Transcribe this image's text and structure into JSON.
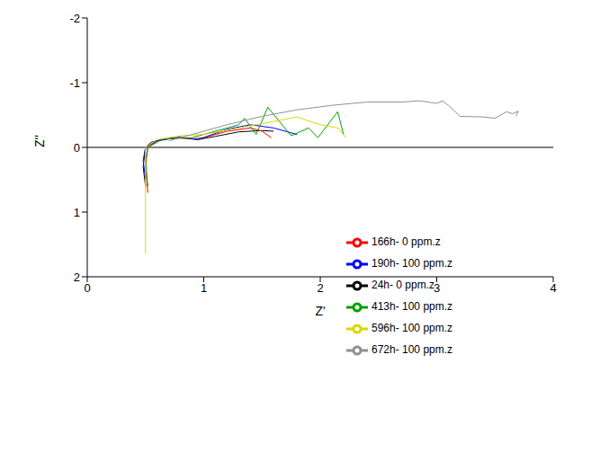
{
  "chart_data": {
    "type": "line",
    "x_label": "Z'",
    "y_label": "Z''",
    "xlim": [
      0,
      4
    ],
    "xticks": [
      0,
      1,
      2,
      3,
      4
    ],
    "ylim": [
      2,
      -2
    ],
    "yticks": [
      -2,
      -1,
      0,
      1,
      2
    ],
    "hlines": [
      0
    ],
    "legend": "right",
    "grid": false,
    "series": [
      {
        "name": "24h- 0 ppm.z",
        "color": "#000000",
        "x": [
          0.5,
          0.48,
          0.5,
          0.55,
          0.65,
          0.8,
          0.95,
          1.1,
          1.3,
          1.5,
          1.6
        ],
        "values": [
          0.6,
          0.3,
          0,
          -0.08,
          -0.13,
          -0.15,
          -0.12,
          -0.17,
          -0.24,
          -0.26,
          -0.25
        ]
      },
      {
        "name": "166h- 0 ppm.z",
        "color": "#ff0000",
        "x": [
          0.52,
          0.5,
          0.52,
          0.6,
          0.75,
          0.9,
          1.0,
          1.2,
          1.4,
          1.5,
          1.58
        ],
        "values": [
          0.7,
          0.3,
          0,
          -0.1,
          -0.15,
          -0.13,
          -0.15,
          -0.25,
          -0.3,
          -0.25,
          -0.15
        ]
      },
      {
        "name": "190h- 100 ppm.z",
        "color": "#0000ff",
        "x": [
          0.5,
          0.48,
          0.5,
          0.6,
          0.8,
          0.95,
          1.2,
          1.4,
          1.6,
          1.8
        ],
        "values": [
          0.5,
          0.2,
          0,
          -0.1,
          -0.16,
          -0.12,
          -0.28,
          -0.35,
          -0.3,
          -0.2
        ]
      },
      {
        "name": "413h- 100 ppm.z",
        "color": "#00a000",
        "x": [
          0.52,
          0.5,
          0.52,
          0.65,
          0.9,
          1.0,
          1.3,
          1.35,
          1.45,
          1.55,
          1.75,
          1.9,
          1.98,
          2.15,
          2.2
        ],
        "values": [
          0.6,
          0.2,
          0,
          -0.13,
          -0.15,
          -0.2,
          -0.35,
          -0.45,
          -0.2,
          -0.62,
          -0.18,
          -0.3,
          -0.15,
          -0.55,
          -0.2
        ]
      },
      {
        "name": "596h- 100 ppm.z",
        "color": "#d8d800",
        "x": [
          0.5,
          0.5,
          0.5,
          0.6,
          0.8,
          1.0,
          1.3,
          1.6,
          1.8,
          2.0,
          2.15,
          2.2,
          2.22
        ],
        "values": [
          1.65,
          0.8,
          0,
          -0.12,
          -0.18,
          -0.2,
          -0.3,
          -0.4,
          -0.47,
          -0.35,
          -0.3,
          -0.2,
          -0.15
        ]
      },
      {
        "name": "672h- 100 ppm.z",
        "color": "#909090",
        "x": [
          0.7,
          0.9,
          1.2,
          1.5,
          1.8,
          2.1,
          2.4,
          2.7,
          2.85,
          3.0,
          3.05,
          3.1,
          3.2,
          3.4,
          3.5,
          3.6,
          3.65,
          3.7,
          3.68
        ],
        "values": [
          -0.1,
          -0.2,
          -0.35,
          -0.48,
          -0.58,
          -0.65,
          -0.7,
          -0.7,
          -0.72,
          -0.68,
          -0.72,
          -0.65,
          -0.48,
          -0.47,
          -0.45,
          -0.55,
          -0.52,
          -0.56,
          -0.48
        ]
      }
    ]
  }
}
